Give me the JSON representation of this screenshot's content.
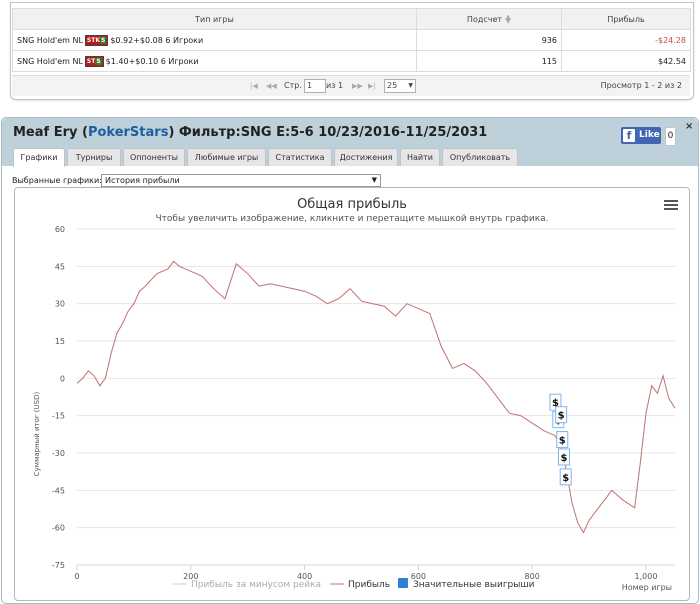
{
  "table": {
    "headers": [
      "Тип игры",
      "Подсчет",
      "Прибыль"
    ],
    "rows": [
      {
        "game": "SNG Hold'em NL",
        "badge": "STKS",
        "stakes": "$0.92+$0.08 6 Игроки",
        "count": "936",
        "profit": "-$24.28",
        "profit_negative": true
      },
      {
        "game": "SNG Hold'em NL",
        "badge": "STS",
        "stakes": "$1.40+$0.10 6 Игроки",
        "count": "115",
        "profit": "$42.54",
        "profit_negative": false
      }
    ]
  },
  "pager": {
    "page_label": "Стр.",
    "page_value": "1",
    "of_label": "из 1",
    "page_size": "25",
    "view_text": "Просмотр 1 - 2 из 2"
  },
  "player": {
    "name": "Meaf Ery",
    "site": "PokerStars",
    "filter": "Фильтр:SNG E:5-6 10/23/2016-11/25/2031"
  },
  "facebook": {
    "like_label": "Like",
    "count": "0"
  },
  "tabs": [
    "Графики",
    "Турниры",
    "Оппоненты",
    "Любимые игры",
    "Статистика",
    "Достижения",
    "Найти",
    "Опубликовать"
  ],
  "graph_select": {
    "label": "Выбранные графики:",
    "value": "История прибыли"
  },
  "chart_data": {
    "type": "line",
    "title": "Общая прибыль",
    "subtitle": "Чтобы увеличить изображение, кликните и перетащите мышкой внутрь графика.",
    "xlabel": "Номер игры",
    "ylabel": "Суммарный итог (USD)",
    "xlim": [
      0,
      1051
    ],
    "ylim": [
      -75,
      60
    ],
    "x_ticks": [
      0,
      200,
      400,
      600,
      800,
      1000
    ],
    "x_tick_labels": [
      "0",
      "200",
      "400",
      "600",
      "800",
      "1,000"
    ],
    "y_ticks": [
      60,
      45,
      30,
      15,
      0,
      -15,
      -30,
      -45,
      -60,
      -75
    ],
    "grid": true,
    "legend": {
      "position": "bottom",
      "items": [
        "Прибыль за минусом рейка",
        "Прибыль",
        "Значительные выигрыши"
      ]
    },
    "series": [
      {
        "name": "Прибыль",
        "color": "#c07070",
        "x": [
          0,
          10,
          20,
          30,
          40,
          50,
          60,
          70,
          80,
          90,
          100,
          110,
          120,
          140,
          160,
          170,
          180,
          200,
          220,
          240,
          260,
          280,
          300,
          320,
          340,
          360,
          380,
          400,
          420,
          440,
          460,
          480,
          500,
          520,
          540,
          560,
          580,
          600,
          620,
          640,
          660,
          680,
          700,
          720,
          740,
          760,
          780,
          800,
          820,
          840,
          850,
          860,
          870,
          880,
          890,
          900,
          920,
          940,
          960,
          980,
          990,
          1000,
          1010,
          1020,
          1030,
          1040,
          1051
        ],
        "y": [
          -2,
          0,
          3,
          1,
          -3,
          0,
          10,
          18,
          22,
          27,
          30,
          35,
          37,
          42,
          44,
          47,
          45,
          43,
          41,
          36,
          32,
          46,
          42,
          37,
          38,
          37,
          36,
          35,
          33,
          30,
          32,
          36,
          31,
          30,
          29,
          25,
          30,
          28,
          26,
          13,
          4,
          6,
          3,
          -2,
          -8,
          -14,
          -15,
          -18,
          -21,
          -23,
          -27,
          -37,
          -50,
          -58,
          -62,
          -57,
          -51,
          -45,
          -49,
          -52,
          -34,
          -14,
          -3,
          -6,
          1,
          -8,
          -12
        ]
      },
      {
        "name": "Прибыль за минусом рейка",
        "color": "#cccccc",
        "x": [],
        "y": []
      }
    ],
    "markers": {
      "label": "$",
      "x": [
        840,
        845,
        850,
        852,
        855,
        858
      ],
      "y": [
        -10,
        -17,
        -15,
        -25,
        -32,
        -40
      ]
    }
  }
}
